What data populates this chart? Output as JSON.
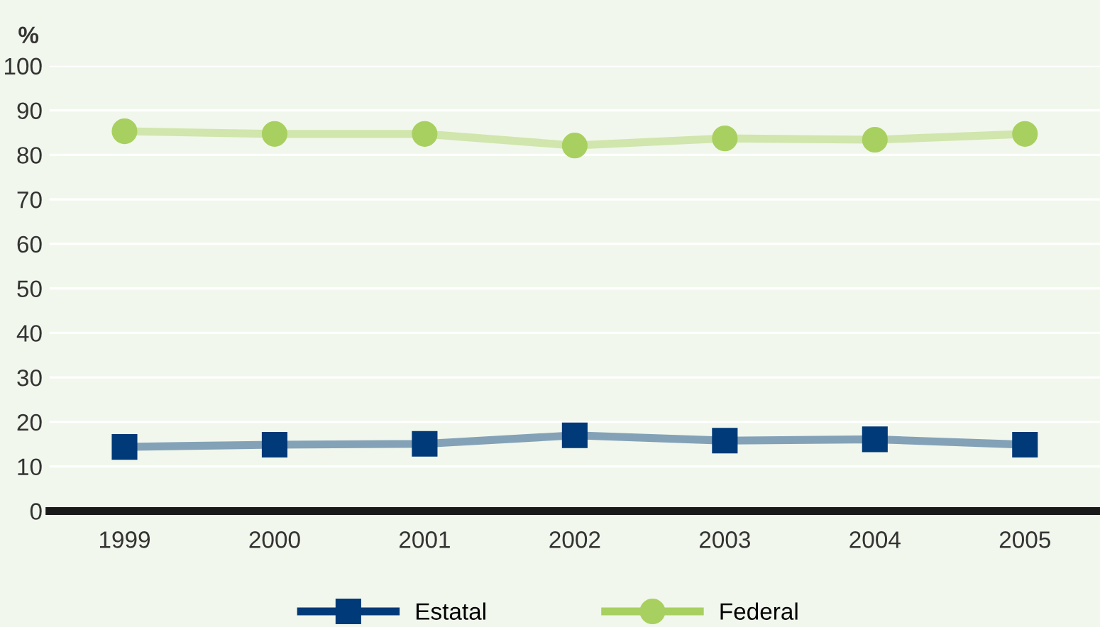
{
  "chart_data": {
    "type": "line",
    "ylabel": "%",
    "categories": [
      "1999",
      "2000",
      "2001",
      "2002",
      "2003",
      "2004",
      "2005"
    ],
    "series": [
      {
        "name": "Estatal",
        "color": "#003a78",
        "marker": "square",
        "values": [
          14.4,
          14.9,
          15.1,
          17.0,
          15.8,
          16.1,
          14.9
        ]
      },
      {
        "name": "Federal",
        "color": "#a8d060",
        "marker": "circle",
        "values": [
          85.3,
          84.7,
          84.7,
          82.1,
          83.7,
          83.4,
          84.7
        ]
      }
    ],
    "ylim": [
      0,
      100
    ],
    "yticks": [
      0,
      10,
      20,
      30,
      40,
      50,
      60,
      70,
      80,
      90,
      100
    ],
    "grid": "y",
    "legend": "bottom",
    "line_style": "solid"
  }
}
